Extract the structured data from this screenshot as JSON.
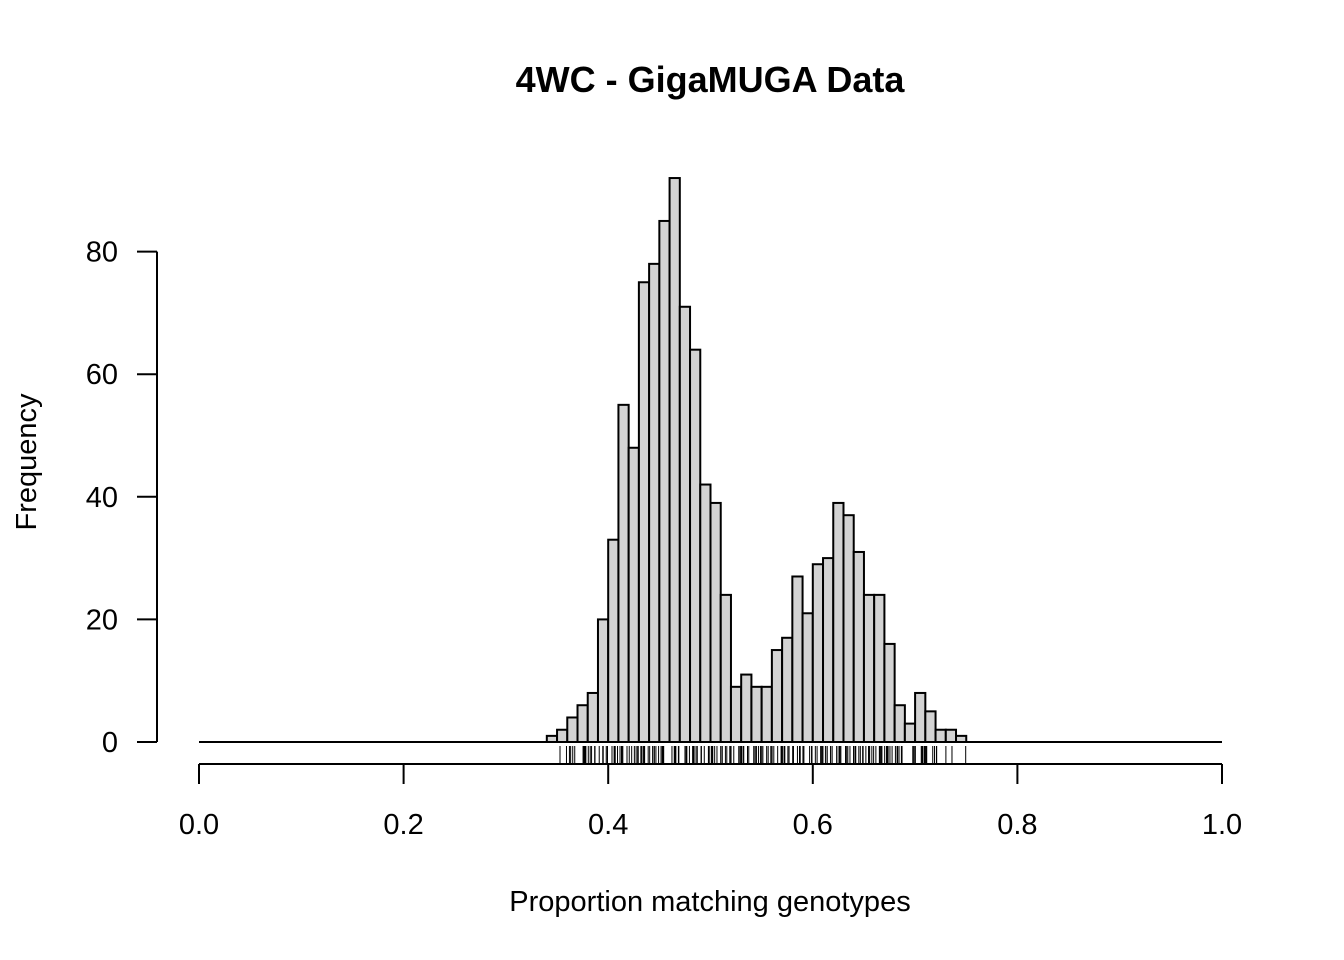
{
  "chart_data": {
    "type": "bar",
    "title": "4WC - GigaMUGA Data",
    "xlabel": "Proportion matching genotypes",
    "ylabel": "Frequency",
    "xlim": [
      0,
      1
    ],
    "ylim": [
      0,
      92
    ],
    "x_ticks": [
      "0.0",
      "0.2",
      "0.4",
      "0.6",
      "0.8",
      "1.0"
    ],
    "y_ticks": [
      "0",
      "20",
      "40",
      "60",
      "80"
    ],
    "bin_width": 0.01,
    "bin_start": 0.0,
    "bar_fill": "#d3d3d3",
    "bar_stroke": "#000000",
    "counts": [
      0,
      0,
      0,
      0,
      0,
      0,
      0,
      0,
      0,
      0,
      0,
      0,
      0,
      0,
      0,
      0,
      0,
      0,
      0,
      0,
      0,
      0,
      0,
      0,
      0,
      0,
      0,
      0,
      0,
      0,
      0,
      0,
      0,
      0,
      1,
      2,
      4,
      6,
      8,
      20,
      33,
      55,
      48,
      75,
      78,
      85,
      92,
      71,
      64,
      42,
      39,
      24,
      9,
      11,
      9,
      9,
      15,
      17,
      27,
      21,
      29,
      30,
      39,
      37,
      31,
      24,
      24,
      16,
      6,
      3,
      8,
      5,
      2,
      2,
      1,
      0,
      0,
      0,
      0,
      0,
      0,
      0,
      0,
      0,
      0,
      0,
      0,
      0,
      0,
      0,
      0,
      0,
      0,
      0,
      0,
      0,
      0,
      0,
      0,
      0
    ],
    "rug_range": [
      0.35,
      0.75
    ]
  }
}
